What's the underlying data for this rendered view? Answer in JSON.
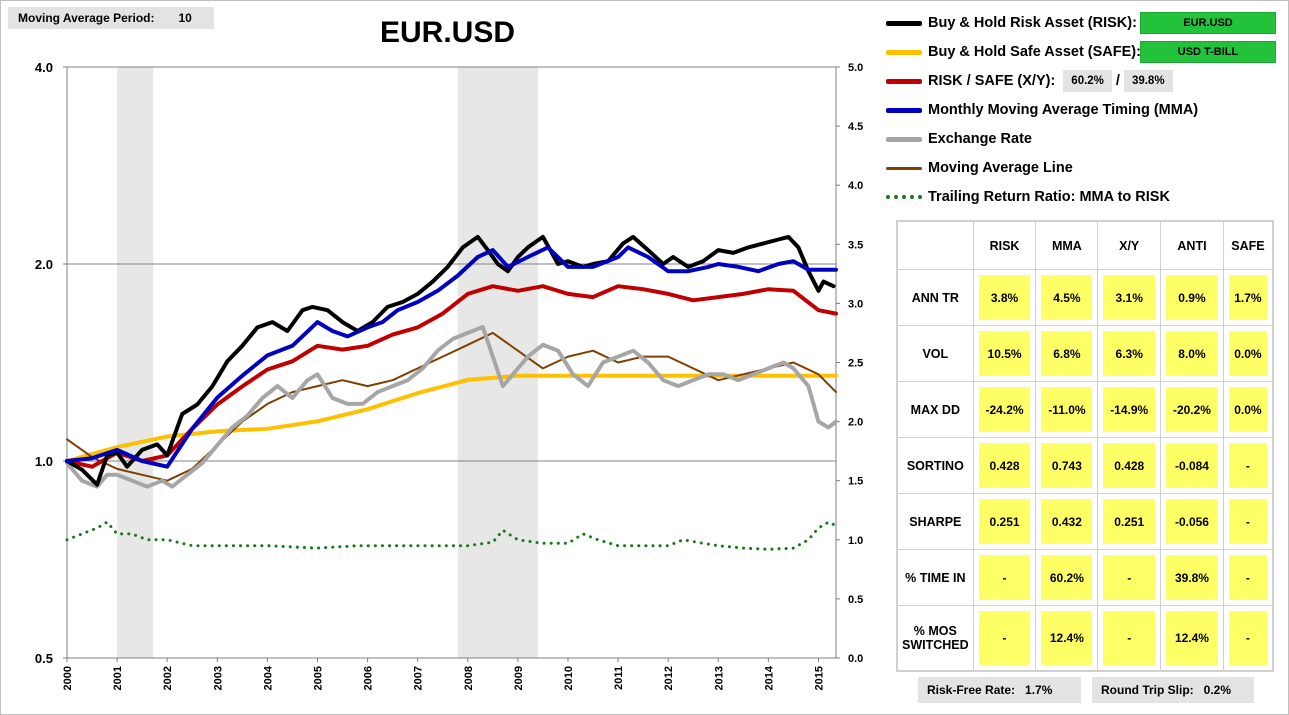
{
  "header": {
    "ma_period_label": "Moving Average Period:",
    "ma_period_value": "10",
    "risk_free_label": "Risk-Free Rate:",
    "risk_free_value": "1.7%",
    "slip_label": "Round Trip Slip:",
    "slip_value": "0.2%"
  },
  "legend": {
    "risk_label": "Buy & Hold Risk Asset (RISK):",
    "risk_asset": "EUR.USD",
    "safe_label": "Buy & Hold Safe Asset (SAFE):",
    "safe_asset": "USD T-BILL",
    "xy_label": "RISK / SAFE (X/Y):",
    "xy_risk": "60.2%",
    "xy_sep": "/",
    "xy_safe": "39.8%",
    "mma_label": "Monthly Moving Average Timing (MMA)",
    "fx_label": "Exchange Rate",
    "ma_label": "Moving Average Line",
    "trr_label": "Trailing Return Ratio: MMA to RISK"
  },
  "colors": {
    "risk": "#000000",
    "safe": "#ffc000",
    "xy": "#c00000",
    "mma": "#0000c0",
    "fx": "#a6a6a6",
    "ma": "#7f3f00",
    "trr": "#1a7a1a",
    "stat_bg": "#ffff66",
    "asset_bg": "#22c33a"
  },
  "stats": {
    "columns": [
      "RISK",
      "MMA",
      "X/Y",
      "ANTI",
      "SAFE"
    ],
    "rows": [
      {
        "label": "ANN TR",
        "values": [
          "3.8%",
          "4.5%",
          "3.1%",
          "0.9%",
          "1.7%"
        ]
      },
      {
        "label": "VOL",
        "values": [
          "10.5%",
          "6.8%",
          "6.3%",
          "8.0%",
          "0.0%"
        ]
      },
      {
        "label": "MAX DD",
        "values": [
          "-24.2%",
          "-11.0%",
          "-14.9%",
          "-20.2%",
          "0.0%"
        ]
      },
      {
        "label": "SORTINO",
        "values": [
          "0.428",
          "0.743",
          "0.428",
          "-0.084",
          "-"
        ]
      },
      {
        "label": "SHARPE",
        "values": [
          "0.251",
          "0.432",
          "0.251",
          "-0.056",
          "-"
        ]
      },
      {
        "label": "% TIME IN",
        "values": [
          "-",
          "60.2%",
          "-",
          "39.8%",
          "-"
        ]
      },
      {
        "label": "% MOS SWITCHED",
        "values": [
          "-",
          "12.4%",
          "-",
          "12.4%",
          "-"
        ]
      }
    ]
  },
  "chart_data": {
    "type": "line",
    "title": "EUR.USD",
    "y_left": {
      "scale": "log",
      "ticks": [
        "4.0",
        "2.0",
        "1.0",
        "0.5"
      ],
      "tick_values": [
        4,
        2,
        1,
        0.5
      ],
      "range": [
        0.5,
        4
      ]
    },
    "y_right": {
      "scale": "linear",
      "ticks": [
        "5.0",
        "4.5",
        "4.0",
        "3.5",
        "3.0",
        "2.5",
        "2.0",
        "1.5",
        "1.0",
        "0.5",
        "0.0"
      ],
      "range": [
        0,
        5
      ]
    },
    "x_ticks": [
      "2000",
      "2001",
      "2002",
      "2003",
      "2004",
      "2005",
      "2006",
      "2007",
      "2008",
      "2009",
      "2010",
      "2011",
      "2012",
      "2013",
      "2014",
      "2015"
    ],
    "x_range": [
      2000,
      2015.35
    ],
    "recession_bands": [
      [
        2001.0,
        2001.72
      ],
      [
        2007.8,
        2009.4
      ]
    ],
    "gridlines": [
      2,
      1
    ],
    "series": [
      {
        "name": "Buy & Hold Risk Asset (RISK)",
        "key": "risk",
        "axis": "left",
        "dashed": false,
        "x": [
          2000,
          2000.3,
          2000.6,
          2000.8,
          2001,
          2001.2,
          2001.5,
          2001.8,
          2002,
          2002.3,
          2002.6,
          2002.9,
          2003.2,
          2003.5,
          2003.8,
          2004.1,
          2004.4,
          2004.7,
          2004.9,
          2005.2,
          2005.5,
          2005.8,
          2006.1,
          2006.4,
          2006.7,
          2007,
          2007.3,
          2007.6,
          2007.9,
          2008.2,
          2008.4,
          2008.6,
          2008.8,
          2009,
          2009.2,
          2009.5,
          2009.8,
          2010,
          2010.3,
          2010.5,
          2010.8,
          2011.1,
          2011.3,
          2011.6,
          2011.9,
          2012.1,
          2012.4,
          2012.7,
          2013,
          2013.3,
          2013.6,
          2013.9,
          2014.2,
          2014.4,
          2014.6,
          2014.8,
          2015,
          2015.1,
          2015.3
        ],
        "values": [
          1.0,
          0.97,
          0.92,
          1.02,
          1.03,
          0.98,
          1.04,
          1.06,
          1.02,
          1.18,
          1.22,
          1.3,
          1.42,
          1.5,
          1.6,
          1.63,
          1.58,
          1.7,
          1.72,
          1.7,
          1.63,
          1.58,
          1.63,
          1.72,
          1.75,
          1.8,
          1.88,
          1.98,
          2.12,
          2.2,
          2.1,
          2.0,
          1.95,
          2.05,
          2.12,
          2.2,
          2.0,
          2.02,
          1.98,
          2.0,
          2.02,
          2.15,
          2.2,
          2.1,
          2.0,
          2.05,
          1.98,
          2.02,
          2.1,
          2.08,
          2.12,
          2.15,
          2.18,
          2.2,
          2.12,
          1.95,
          1.82,
          1.88,
          1.85
        ]
      },
      {
        "name": "Buy & Hold Safe Asset (SAFE)",
        "key": "safe",
        "axis": "left",
        "dashed": false,
        "x": [
          2000,
          2001,
          2002,
          2003,
          2004,
          2005,
          2006,
          2007,
          2008,
          2009,
          2010,
          2011,
          2012,
          2013,
          2014,
          2015.35
        ],
        "values": [
          1.0,
          1.05,
          1.09,
          1.11,
          1.12,
          1.15,
          1.2,
          1.27,
          1.33,
          1.35,
          1.35,
          1.35,
          1.35,
          1.35,
          1.35,
          1.35
        ]
      },
      {
        "name": "RISK / SAFE (X/Y)",
        "key": "xy",
        "axis": "left",
        "dashed": false,
        "x": [
          2000,
          2000.5,
          2001,
          2001.5,
          2002,
          2002.5,
          2003,
          2003.5,
          2004,
          2004.5,
          2005,
          2005.5,
          2006,
          2006.5,
          2007,
          2007.5,
          2008,
          2008.5,
          2009,
          2009.5,
          2010,
          2010.5,
          2011,
          2011.5,
          2012,
          2012.5,
          2013,
          2013.5,
          2014,
          2014.5,
          2015,
          2015.35
        ],
        "values": [
          1.0,
          0.98,
          1.03,
          1.0,
          1.02,
          1.12,
          1.22,
          1.3,
          1.38,
          1.42,
          1.5,
          1.48,
          1.5,
          1.56,
          1.6,
          1.68,
          1.8,
          1.85,
          1.82,
          1.85,
          1.8,
          1.78,
          1.85,
          1.83,
          1.8,
          1.76,
          1.78,
          1.8,
          1.83,
          1.82,
          1.7,
          1.68
        ]
      },
      {
        "name": "Monthly Moving Average Timing (MMA)",
        "key": "mma",
        "axis": "left",
        "dashed": false,
        "x": [
          2000,
          2000.5,
          2001,
          2001.5,
          2002,
          2002.5,
          2003,
          2003.5,
          2004,
          2004.5,
          2005,
          2005.3,
          2005.6,
          2006,
          2006.3,
          2006.6,
          2007,
          2007.4,
          2007.8,
          2008.2,
          2008.5,
          2008.8,
          2009.2,
          2009.6,
          2010,
          2010.5,
          2011,
          2011.2,
          2011.6,
          2012,
          2012.4,
          2012.8,
          2013,
          2013.4,
          2013.8,
          2014.2,
          2014.5,
          2014.8,
          2015,
          2015.35
        ],
        "values": [
          1.0,
          1.01,
          1.04,
          1.0,
          0.98,
          1.12,
          1.25,
          1.35,
          1.45,
          1.5,
          1.63,
          1.58,
          1.55,
          1.6,
          1.63,
          1.7,
          1.75,
          1.82,
          1.92,
          2.05,
          2.1,
          1.98,
          2.05,
          2.12,
          1.98,
          1.98,
          2.05,
          2.12,
          2.05,
          1.95,
          1.95,
          1.98,
          2.0,
          1.98,
          1.95,
          2.0,
          2.02,
          1.96,
          1.96,
          1.96
        ]
      },
      {
        "name": "Exchange Rate",
        "key": "fx",
        "axis": "right",
        "dashed": false,
        "x": [
          2000,
          2000.3,
          2000.6,
          2000.8,
          2001,
          2001.3,
          2001.6,
          2001.9,
          2002.1,
          2002.4,
          2002.7,
          2003,
          2003.3,
          2003.6,
          2003.9,
          2004.2,
          2004.5,
          2004.8,
          2005,
          2005.3,
          2005.6,
          2005.9,
          2006.2,
          2006.5,
          2006.8,
          2007.1,
          2007.4,
          2007.7,
          2008,
          2008.3,
          2008.5,
          2008.7,
          2009,
          2009.2,
          2009.5,
          2009.8,
          2010.1,
          2010.4,
          2010.7,
          2011,
          2011.3,
          2011.6,
          2011.9,
          2012.2,
          2012.5,
          2012.8,
          2013.1,
          2013.4,
          2013.7,
          2014,
          2014.3,
          2014.5,
          2014.8,
          2015,
          2015.2,
          2015.35
        ],
        "values": [
          1.65,
          1.5,
          1.45,
          1.55,
          1.55,
          1.5,
          1.45,
          1.5,
          1.45,
          1.55,
          1.65,
          1.8,
          1.95,
          2.05,
          2.2,
          2.3,
          2.2,
          2.35,
          2.4,
          2.2,
          2.15,
          2.15,
          2.25,
          2.3,
          2.35,
          2.45,
          2.6,
          2.7,
          2.75,
          2.8,
          2.55,
          2.3,
          2.45,
          2.55,
          2.65,
          2.6,
          2.4,
          2.3,
          2.5,
          2.55,
          2.6,
          2.5,
          2.35,
          2.3,
          2.35,
          2.4,
          2.4,
          2.35,
          2.4,
          2.45,
          2.5,
          2.45,
          2.3,
          2.0,
          1.95,
          2.0
        ]
      },
      {
        "name": "Moving Average Line",
        "key": "ma",
        "axis": "right",
        "dashed": false,
        "x": [
          2000,
          2000.5,
          2001,
          2001.5,
          2002,
          2002.5,
          2003,
          2003.5,
          2004,
          2004.5,
          2005,
          2005.5,
          2006,
          2006.5,
          2007,
          2007.5,
          2008,
          2008.5,
          2009,
          2009.5,
          2010,
          2010.5,
          2011,
          2011.5,
          2012,
          2012.5,
          2013,
          2013.5,
          2014,
          2014.5,
          2015,
          2015.35
        ],
        "values": [
          1.85,
          1.7,
          1.6,
          1.55,
          1.5,
          1.6,
          1.8,
          2.0,
          2.15,
          2.25,
          2.3,
          2.35,
          2.3,
          2.35,
          2.45,
          2.55,
          2.65,
          2.75,
          2.6,
          2.45,
          2.55,
          2.6,
          2.5,
          2.55,
          2.55,
          2.45,
          2.35,
          2.4,
          2.45,
          2.5,
          2.4,
          2.25
        ]
      },
      {
        "name": "Trailing Return Ratio: MMA to RISK",
        "key": "trr",
        "axis": "right",
        "dashed": true,
        "x": [
          2000,
          2000.3,
          2000.6,
          2000.8,
          2001,
          2001.3,
          2001.6,
          2002,
          2002.5,
          2003,
          2004,
          2005,
          2005.8,
          2006.5,
          2007,
          2007.5,
          2008,
          2008.5,
          2008.7,
          2009,
          2009.5,
          2010,
          2010.3,
          2010.6,
          2011,
          2011.5,
          2012,
          2012.3,
          2012.7,
          2013,
          2013.5,
          2014,
          2014.5,
          2014.8,
          2015,
          2015.2,
          2015.35
        ],
        "values": [
          1.0,
          1.05,
          1.1,
          1.15,
          1.05,
          1.05,
          1.0,
          1.0,
          0.95,
          0.95,
          0.95,
          0.93,
          0.95,
          0.95,
          0.95,
          0.95,
          0.95,
          0.98,
          1.08,
          1.0,
          0.97,
          0.97,
          1.05,
          1.0,
          0.95,
          0.95,
          0.95,
          1.0,
          0.97,
          0.95,
          0.93,
          0.92,
          0.93,
          1.0,
          1.1,
          1.15,
          1.12
        ]
      }
    ]
  }
}
